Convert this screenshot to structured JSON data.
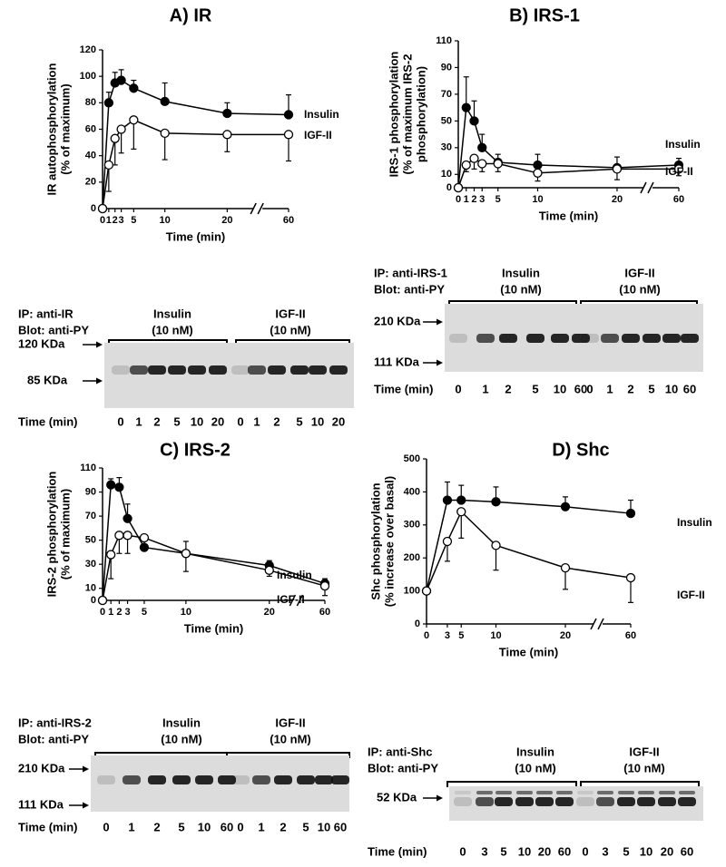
{
  "chart_data": [
    {
      "type": "line",
      "title": "A) IR",
      "y_label": [
        "IR autophosphorylation",
        "(% of maximum)"
      ],
      "x_label": "Time (min)",
      "x": [
        0,
        1,
        2,
        3,
        5,
        10,
        20,
        60
      ],
      "xlim": [
        0,
        60
      ],
      "xticks": [
        0,
        1,
        2,
        3,
        5,
        10,
        20,
        60
      ],
      "xbreak": [
        20,
        60
      ],
      "ylim": [
        0,
        120
      ],
      "yticks": [
        0,
        20,
        40,
        60,
        80,
        100,
        120
      ],
      "series": [
        {
          "name": "Insulin",
          "color": "#000000",
          "marker_fill": "#000000",
          "values": [
            0,
            80,
            95,
            97,
            91,
            81,
            72,
            71
          ],
          "errors": [
            0,
            8,
            8,
            8,
            6,
            14,
            8,
            15
          ]
        },
        {
          "name": "IGF-II",
          "color": "#000000",
          "marker_fill": "#ffffff",
          "values": [
            0,
            33,
            53,
            60,
            67,
            57,
            56,
            56
          ],
          "errors": [
            0,
            20,
            20,
            18,
            22,
            20,
            13,
            20
          ]
        }
      ]
    },
    {
      "type": "line",
      "title": "B) IRS-1",
      "y_label": [
        "IRS-1 phosphorylation",
        "(% of maximum IRS-2",
        "phosphorylation)"
      ],
      "x_label": "Time (min)",
      "x": [
        0,
        1,
        2,
        3,
        5,
        10,
        20,
        60
      ],
      "xlim": [
        0,
        60
      ],
      "xticks": [
        0,
        1,
        2,
        3,
        5,
        10,
        20,
        60
      ],
      "xbreak": [
        20,
        60
      ],
      "ylim": [
        0,
        110
      ],
      "yticks": [
        0,
        10,
        30,
        50,
        70,
        90,
        110
      ],
      "series": [
        {
          "name": "Insulin",
          "color": "#000000",
          "marker_fill": "#000000",
          "values": [
            0,
            60,
            50,
            30,
            19,
            17,
            15,
            17
          ],
          "errors": [
            0,
            23,
            15,
            10,
            6,
            8,
            8,
            5
          ]
        },
        {
          "name": "IGF-II",
          "color": "#000000",
          "marker_fill": "#ffffff",
          "values": [
            0,
            17,
            22,
            18,
            18,
            11,
            14,
            14
          ],
          "errors": [
            0,
            5,
            8,
            6,
            6,
            6,
            8,
            5
          ]
        }
      ]
    },
    {
      "type": "line",
      "title": "C) IRS-2",
      "y_label": [
        "IRS-2 phosphorylation",
        "(% of maximum)"
      ],
      "x_label": "Time (min)",
      "x": [
        0,
        1,
        2,
        3,
        5,
        10,
        20,
        60
      ],
      "xlim": [
        0,
        60
      ],
      "xticks": [
        0,
        1,
        2,
        3,
        5,
        10,
        20,
        60
      ],
      "xbreak": [
        20,
        60
      ],
      "ylim": [
        0,
        110
      ],
      "yticks": [
        0,
        10,
        30,
        50,
        70,
        90,
        110
      ],
      "series": [
        {
          "name": "Insulin",
          "color": "#000000",
          "marker_fill": "#000000",
          "values": [
            0,
            96,
            94,
            68,
            44,
            39,
            29,
            14
          ],
          "errors": [
            0,
            5,
            8,
            12,
            8,
            10,
            4,
            4
          ]
        },
        {
          "name": "IGF-II",
          "color": "#000000",
          "marker_fill": "#ffffff",
          "values": [
            0,
            38,
            54,
            54,
            52,
            39,
            25,
            12
          ],
          "errors": [
            0,
            20,
            15,
            15,
            10,
            15,
            5,
            8
          ]
        }
      ]
    },
    {
      "type": "line",
      "title": "D) Shc",
      "y_label": [
        "Shc phosphorylation",
        "(% increase over basal)"
      ],
      "x_label": "Time (min)",
      "x": [
        0,
        3,
        5,
        10,
        20,
        60
      ],
      "xlim": [
        0,
        60
      ],
      "xticks": [
        0,
        3,
        5,
        10,
        20,
        60
      ],
      "xbreak": [
        20,
        60
      ],
      "ylim": [
        0,
        500
      ],
      "yticks": [
        0,
        100,
        200,
        300,
        400,
        500
      ],
      "series": [
        {
          "name": "Insulin",
          "color": "#000000",
          "marker_fill": "#000000",
          "values": [
            100,
            375,
            375,
            370,
            355,
            335
          ],
          "errors": [
            0,
            55,
            45,
            45,
            30,
            40
          ]
        },
        {
          "name": "IGF-II",
          "color": "#000000",
          "marker_fill": "#ffffff",
          "values": [
            100,
            250,
            340,
            238,
            170,
            140
          ],
          "errors": [
            0,
            60,
            80,
            75,
            65,
            75
          ]
        }
      ]
    }
  ],
  "blots": [
    {
      "ip": "IP: anti-IR",
      "blot": "Blot: anti-PY",
      "groups": [
        {
          "agent": "Insulin",
          "dose": "(10 nM)"
        },
        {
          "agent": "IGF-II",
          "dose": "(10 nM)"
        }
      ],
      "markers": [
        "120 KDa",
        "85 KDa"
      ],
      "time_label": "Time (min)",
      "lanes": [
        "0",
        "1",
        "2",
        "5",
        "10",
        "20",
        "0",
        "1",
        "2",
        "5",
        "10",
        "20"
      ]
    },
    {
      "ip": "IP: anti-IRS-1",
      "blot": "Blot: anti-PY",
      "groups": [
        {
          "agent": "Insulin",
          "dose": "(10 nM)"
        },
        {
          "agent": "IGF-II",
          "dose": "(10 nM)"
        }
      ],
      "markers": [
        "210 KDa",
        "111 KDa"
      ],
      "time_label": "Time (min)",
      "lanes": [
        "0",
        "1",
        "2",
        "5",
        "10",
        "60",
        "0",
        "1",
        "2",
        "5",
        "10",
        "60"
      ]
    },
    {
      "ip": "IP: anti-IRS-2",
      "blot": "Blot: anti-PY",
      "groups": [
        {
          "agent": "Insulin",
          "dose": "(10 nM)"
        },
        {
          "agent": "IGF-II",
          "dose": "(10 nM)"
        }
      ],
      "markers": [
        "210 KDa",
        "111 KDa"
      ],
      "time_label": "Time (min)",
      "lanes": [
        "0",
        "1",
        "2",
        "5",
        "10",
        "60",
        "0",
        "1",
        "2",
        "5",
        "10",
        "60"
      ]
    },
    {
      "ip": "IP: anti-Shc",
      "blot": "Blot: anti-PY",
      "groups": [
        {
          "agent": "Insulin",
          "dose": "(10 nM)"
        },
        {
          "agent": "IGF-II",
          "dose": "(10 nM)"
        }
      ],
      "markers": [
        "52 KDa"
      ],
      "time_label": "Time (min)",
      "lanes": [
        "0",
        "3",
        "5",
        "10",
        "20",
        "60",
        "0",
        "3",
        "5",
        "10",
        "20",
        "60"
      ]
    }
  ]
}
